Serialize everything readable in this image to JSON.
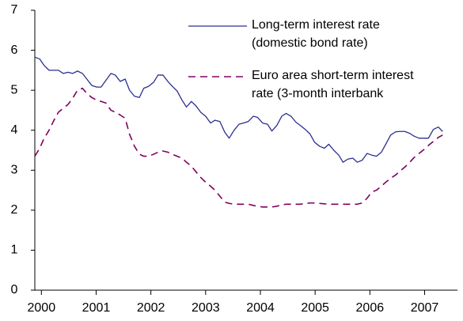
{
  "chart_data": {
    "type": "line",
    "x": [
      1999.88,
      1999.97,
      2000.05,
      2000.14,
      2000.23,
      2000.31,
      2000.4,
      2000.49,
      2000.57,
      2000.66,
      2000.75,
      2000.83,
      2000.92,
      2001.01,
      2001.09,
      2001.18,
      2001.27,
      2001.35,
      2001.44,
      2001.53,
      2001.61,
      2001.7,
      2001.79,
      2001.87,
      2001.96,
      2002.05,
      2002.13,
      2002.22,
      2002.31,
      2002.39,
      2002.48,
      2002.57,
      2002.65,
      2002.74,
      2002.83,
      2002.91,
      2003.0,
      2003.09,
      2003.17,
      2003.26,
      2003.35,
      2003.43,
      2003.52,
      2003.61,
      2003.69,
      2003.78,
      2003.87,
      2003.95,
      2004.04,
      2004.13,
      2004.21,
      2004.3,
      2004.39,
      2004.47,
      2004.56,
      2004.65,
      2004.73,
      2004.82,
      2004.91,
      2004.99,
      2005.08,
      2005.17,
      2005.25,
      2005.34,
      2005.43,
      2005.51,
      2005.6,
      2005.69,
      2005.77,
      2005.86,
      2005.95,
      2006.03,
      2006.12,
      2006.21,
      2006.29,
      2006.38,
      2006.47,
      2006.55,
      2006.64,
      2006.73,
      2006.81,
      2006.9,
      2006.99,
      2007.07,
      2007.16,
      2007.25,
      2007.33
    ],
    "series": [
      {
        "name": "Long-term interest rate\n(domestic bond rate)",
        "color": "#2b2f8f",
        "dash": false,
        "values": [
          5.83,
          5.78,
          5.62,
          5.5,
          5.5,
          5.5,
          5.42,
          5.45,
          5.42,
          5.48,
          5.42,
          5.28,
          5.12,
          5.08,
          5.08,
          5.25,
          5.42,
          5.38,
          5.22,
          5.28,
          5.0,
          4.85,
          4.82,
          5.05,
          5.1,
          5.2,
          5.38,
          5.38,
          5.22,
          5.1,
          4.98,
          4.75,
          4.58,
          4.72,
          4.6,
          4.45,
          4.35,
          4.18,
          4.25,
          4.22,
          3.95,
          3.8,
          4.0,
          4.15,
          4.18,
          4.22,
          4.35,
          4.32,
          4.18,
          4.15,
          3.98,
          4.12,
          4.35,
          4.42,
          4.35,
          4.2,
          4.12,
          4.02,
          3.9,
          3.7,
          3.6,
          3.55,
          3.65,
          3.5,
          3.38,
          3.2,
          3.28,
          3.3,
          3.2,
          3.25,
          3.42,
          3.38,
          3.35,
          3.45,
          3.65,
          3.88,
          3.96,
          3.97,
          3.97,
          3.92,
          3.85,
          3.8,
          3.8,
          3.8,
          4.02,
          4.08,
          3.97
        ]
      },
      {
        "name": "Euro area short-term interest\nrate (3-month interbank",
        "color": "#800060",
        "dash": true,
        "values": [
          3.35,
          3.55,
          3.8,
          4.0,
          4.25,
          4.45,
          4.55,
          4.65,
          4.8,
          5.0,
          5.05,
          4.92,
          4.82,
          4.75,
          4.72,
          4.68,
          4.5,
          4.45,
          4.38,
          4.3,
          3.9,
          3.6,
          3.4,
          3.35,
          3.35,
          3.4,
          3.45,
          3.48,
          3.45,
          3.4,
          3.35,
          3.3,
          3.2,
          3.1,
          2.95,
          2.82,
          2.7,
          2.6,
          2.5,
          2.35,
          2.2,
          2.17,
          2.15,
          2.15,
          2.15,
          2.15,
          2.12,
          2.1,
          2.08,
          2.08,
          2.08,
          2.1,
          2.13,
          2.15,
          2.15,
          2.15,
          2.15,
          2.17,
          2.18,
          2.18,
          2.17,
          2.16,
          2.15,
          2.15,
          2.15,
          2.15,
          2.15,
          2.15,
          2.15,
          2.18,
          2.3,
          2.45,
          2.5,
          2.6,
          2.7,
          2.8,
          2.88,
          2.98,
          3.08,
          3.2,
          3.32,
          3.42,
          3.52,
          3.62,
          3.72,
          3.82,
          3.88
        ]
      }
    ],
    "xlim": [
      1999.88,
      2007.6
    ],
    "xticks": [
      2000,
      2001,
      2002,
      2003,
      2004,
      2005,
      2006,
      2007
    ],
    "ylim": [
      0,
      7
    ],
    "yticks": [
      0,
      1,
      2,
      3,
      4,
      5,
      6,
      7
    ],
    "grid": false
  }
}
